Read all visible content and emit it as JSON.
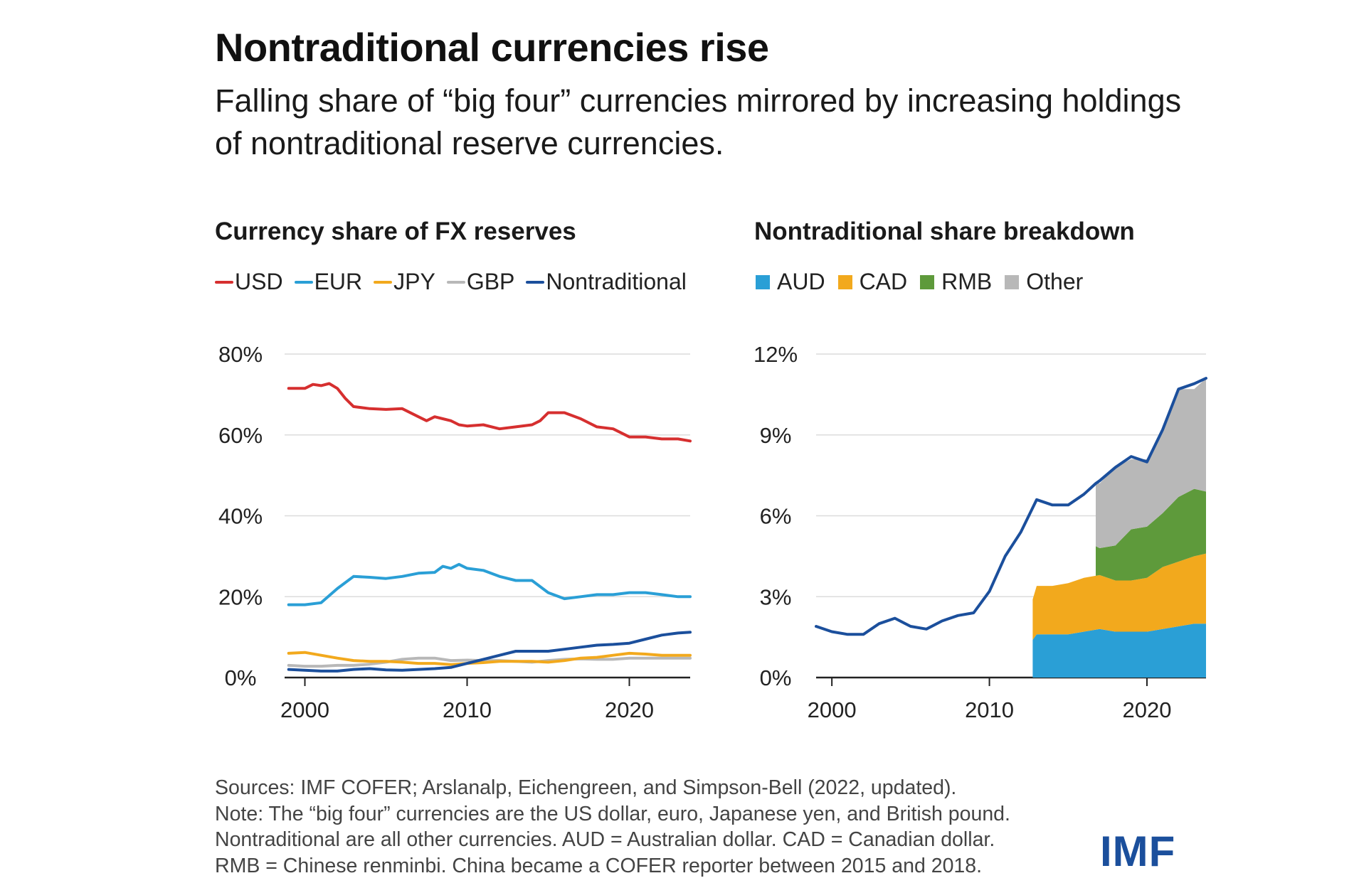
{
  "header": {
    "title": "Nontraditional currencies rise",
    "subtitle": "Falling share of “big four” currencies mirrored by increasing holdings of nontraditional reserve currencies."
  },
  "notes": [
    "Sources: IMF COFER; Arslanalp, Eichengreen, and Simpson-Bell (2022, updated).",
    "Note: The “big four” currencies are the US dollar, euro, Japanese yen, and British pound.",
    "Nontraditional are all other currencies. AUD = Australian dollar. CAD = Canadian dollar.",
    "RMB = Chinese renminbi. China became a COFER reporter between 2015 and 2018."
  ],
  "logo_text": "IMF",
  "chart_data": [
    {
      "type": "line",
      "title": "Currency share of FX reserves",
      "ylim": [
        0,
        80
      ],
      "xlim": [
        1998.75,
        2023.75
      ],
      "y_ticks": [
        0,
        20,
        40,
        60,
        80
      ],
      "y_tick_labels": [
        "0%",
        "20%",
        "40%",
        "60%",
        "80%"
      ],
      "x_ticks": [
        2000,
        2010,
        2020
      ],
      "x_tick_labels": [
        "2000",
        "2010",
        "2020"
      ],
      "grid": true,
      "legend_position": "top",
      "series": [
        {
          "name": "USD",
          "color": "#d62f2f",
          "x": [
            1999,
            2000,
            2000.5,
            2001,
            2001.5,
            2002,
            2002.5,
            2003,
            2004,
            2005,
            2006,
            2007,
            2007.5,
            2008,
            2008.5,
            2009,
            2009.5,
            2010,
            2011,
            2012,
            2013,
            2014,
            2014.5,
            2015,
            2016,
            2017,
            2018,
            2019,
            2020,
            2021,
            2022,
            2023,
            2023.75
          ],
          "y": [
            71.5,
            71.5,
            72.5,
            72.2,
            72.7,
            71.5,
            69,
            67,
            66.5,
            66.3,
            66.5,
            64.5,
            63.5,
            64.5,
            64,
            63.5,
            62.5,
            62.2,
            62.5,
            61.5,
            62,
            62.5,
            63.5,
            65.5,
            65.5,
            64,
            62,
            61.5,
            59.5,
            59.5,
            59,
            59,
            58.5
          ]
        },
        {
          "name": "EUR",
          "color": "#2a9fd6",
          "x": [
            1999,
            2000,
            2001,
            2002,
            2003,
            2004,
            2005,
            2006,
            2007,
            2008,
            2008.5,
            2009,
            2009.5,
            2010,
            2011,
            2012,
            2013,
            2014,
            2015,
            2016,
            2017,
            2018,
            2019,
            2020,
            2021,
            2022,
            2023,
            2023.75
          ],
          "y": [
            18,
            18,
            18.5,
            22,
            25,
            24.8,
            24.5,
            25,
            25.8,
            26,
            27.5,
            27,
            28,
            27,
            26.5,
            25,
            24,
            24,
            21,
            19.5,
            20,
            20.5,
            20.5,
            21,
            21,
            20.5,
            20,
            20
          ]
        },
        {
          "name": "JPY",
          "color": "#f2a91d",
          "x": [
            1999,
            2000,
            2001,
            2002,
            2003,
            2004,
            2005,
            2006,
            2007,
            2008,
            2009,
            2010,
            2011,
            2012,
            2013,
            2014,
            2015,
            2016,
            2017,
            2018,
            2019,
            2020,
            2021,
            2022,
            2023,
            2023.75
          ],
          "y": [
            6,
            6.2,
            5.5,
            4.8,
            4.2,
            4,
            4,
            3.8,
            3.5,
            3.5,
            3.2,
            3.5,
            3.7,
            4,
            4,
            4,
            3.8,
            4.2,
            4.8,
            5,
            5.5,
            6,
            5.8,
            5.5,
            5.5,
            5.5
          ]
        },
        {
          "name": "GBP",
          "color": "#b8b8b8",
          "x": [
            1999,
            2000,
            2001,
            2002,
            2003,
            2004,
            2005,
            2006,
            2007,
            2008,
            2009,
            2010,
            2011,
            2012,
            2013,
            2014,
            2015,
            2016,
            2017,
            2018,
            2019,
            2020,
            2021,
            2022,
            2023,
            2023.75
          ],
          "y": [
            3,
            2.8,
            2.8,
            3,
            3,
            3.3,
            3.8,
            4.5,
            4.8,
            4.8,
            4.2,
            4.3,
            4.2,
            4.2,
            4,
            3.8,
            4.2,
            4.5,
            4.6,
            4.5,
            4.5,
            4.8,
            4.8,
            4.8,
            4.8,
            4.8
          ]
        },
        {
          "name": "Nontraditional",
          "color": "#1b4f9c",
          "x": [
            1999,
            2000,
            2001,
            2002,
            2003,
            2004,
            2005,
            2006,
            2007,
            2008,
            2009,
            2010,
            2011,
            2012,
            2013,
            2014,
            2015,
            2016,
            2017,
            2018,
            2019,
            2020,
            2021,
            2022,
            2023,
            2023.75
          ],
          "y": [
            2,
            1.8,
            1.6,
            1.6,
            2,
            2.2,
            1.9,
            1.8,
            2,
            2.2,
            2.5,
            3.5,
            4.5,
            5.5,
            6.5,
            6.5,
            6.5,
            7,
            7.5,
            8,
            8.2,
            8.5,
            9.5,
            10.5,
            11,
            11.2
          ]
        }
      ]
    },
    {
      "type": "area",
      "title": "Nontraditional share breakdown",
      "ylim": [
        0,
        12
      ],
      "xlim": [
        1999,
        2023.75
      ],
      "y_ticks": [
        0,
        3,
        6,
        9,
        12
      ],
      "y_tick_labels": [
        "0%",
        "3%",
        "6%",
        "9%",
        "12%"
      ],
      "x_ticks": [
        2000,
        2010,
        2020
      ],
      "x_tick_labels": [
        "2000",
        "2010",
        "2020"
      ],
      "grid": true,
      "legend_position": "top",
      "stacked": true,
      "series": [
        {
          "name": "AUD",
          "color": "#2a9fd6",
          "x": [
            2012.75,
            2013,
            2014,
            2015,
            2016,
            2017,
            2018,
            2019,
            2020,
            2021,
            2022,
            2023,
            2023.75
          ],
          "y": [
            1.4,
            1.6,
            1.6,
            1.6,
            1.7,
            1.8,
            1.7,
            1.7,
            1.7,
            1.8,
            1.9,
            2.0,
            2.0
          ]
        },
        {
          "name": "CAD",
          "color": "#f2a91d",
          "x": [
            2012.75,
            2013,
            2014,
            2015,
            2016,
            2017,
            2018,
            2019,
            2020,
            2021,
            2022,
            2023,
            2023.75
          ],
          "y": [
            1.5,
            1.8,
            1.8,
            1.9,
            2.0,
            2.0,
            1.9,
            1.9,
            2.0,
            2.3,
            2.4,
            2.5,
            2.6
          ]
        },
        {
          "name": "RMB",
          "color": "#5e9a3b",
          "x": [
            2016.75,
            2017,
            2018,
            2019,
            2020,
            2021,
            2022,
            2023,
            2023.75
          ],
          "y": [
            1.1,
            1.0,
            1.3,
            1.9,
            1.9,
            2.0,
            2.4,
            2.5,
            2.3
          ]
        },
        {
          "name": "Other",
          "color": "#b8b8b8",
          "x": [
            2016.75,
            2017,
            2018,
            2019,
            2020,
            2021,
            2022,
            2023,
            2023.75
          ],
          "y": [
            2.4,
            2.4,
            2.9,
            2.6,
            2.5,
            3.1,
            4.0,
            3.7,
            4.2
          ]
        }
      ],
      "total_line": {
        "name": "Nontraditional",
        "color": "#1b4f9c",
        "x": [
          1999,
          2000,
          2001,
          2002,
          2003,
          2004,
          2005,
          2006,
          2007,
          2008,
          2009,
          2010,
          2011,
          2012,
          2013,
          2014,
          2015,
          2016,
          2016.75,
          2017,
          2018,
          2019,
          2020,
          2021,
          2022,
          2023,
          2023.75
        ],
        "y": [
          1.9,
          1.7,
          1.6,
          1.6,
          2.0,
          2.2,
          1.9,
          1.8,
          2.1,
          2.3,
          2.4,
          3.2,
          4.5,
          5.4,
          6.6,
          6.4,
          6.4,
          6.8,
          7.2,
          7.3,
          7.8,
          8.2,
          8.0,
          9.2,
          10.7,
          10.9,
          11.1
        ]
      }
    }
  ]
}
